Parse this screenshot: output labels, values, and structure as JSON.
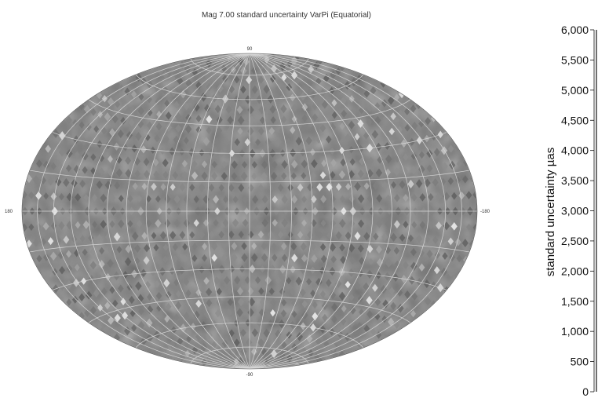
{
  "chart_data": {
    "type": "heatmap",
    "projection": "hammer-aitoff",
    "coordinate_frame": "equatorial",
    "title": "Mag 7.00 standard uncertainty VarPi (Equatorial)",
    "pole_labels": {
      "top": "90",
      "bottom": "-90",
      "left": "180",
      "right": "-180"
    },
    "map_range": {
      "lon": [
        180,
        -180
      ],
      "lat": [
        -90,
        90
      ]
    },
    "graticule": true,
    "colorbar": {
      "label": "standard uncertainty µas",
      "range": [
        0,
        6000
      ],
      "ticks": [
        "6,000",
        "5,500",
        "5,000",
        "4,500",
        "4,000",
        "3,500",
        "3,000",
        "2,500",
        "2,000",
        "1,500",
        "1,000",
        "500",
        "0"
      ],
      "tick_values": [
        6000,
        5500,
        5000,
        4500,
        4000,
        3500,
        3000,
        2500,
        2000,
        1500,
        1000,
        500,
        0
      ],
      "placement": "right"
    },
    "colors": {
      "low": "#6a6a6a",
      "high": "#f2f2f2",
      "grid": "#d9d9d9",
      "axis": "#111111"
    }
  }
}
